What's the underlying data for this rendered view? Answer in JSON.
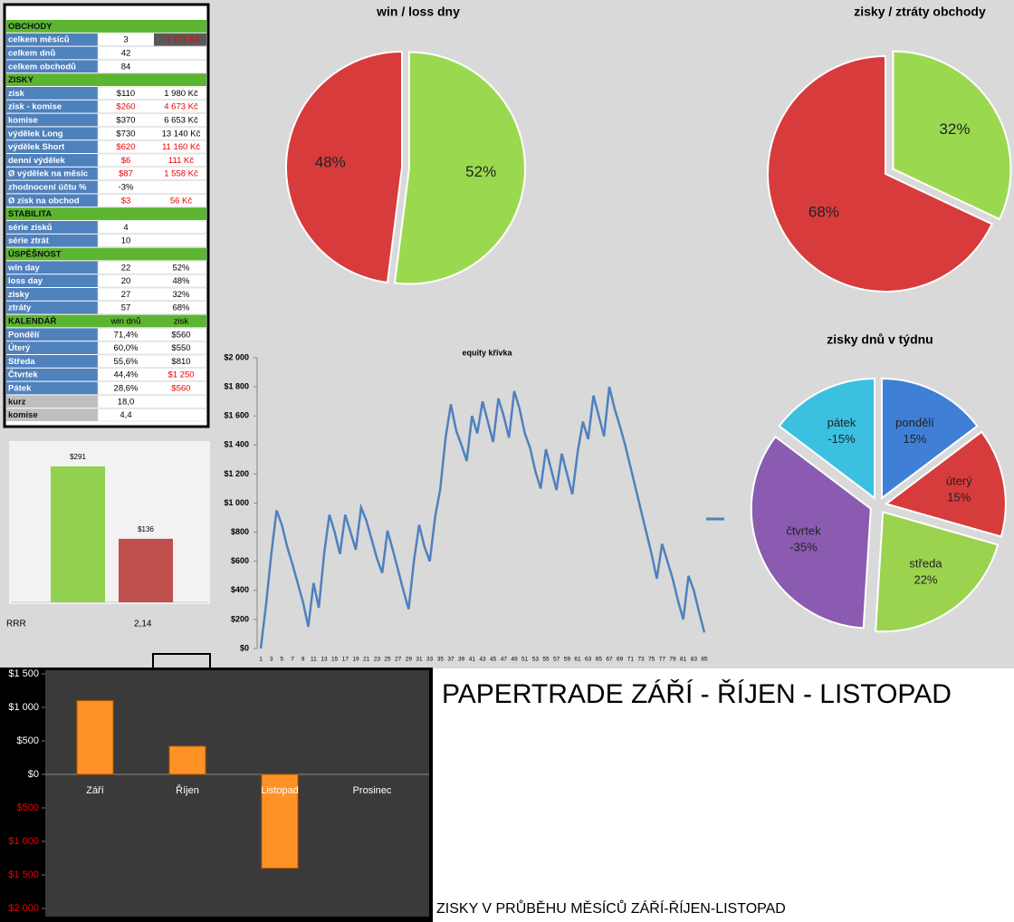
{
  "table": {
    "rows": [
      [
        "OBCHODY"
      ],
      [
        "celkem měsíců",
        "3",
        "-3 972 Kč"
      ],
      [
        "celkem dnů",
        "42"
      ],
      [
        "celkem obchodů",
        "84"
      ],
      [
        "ZISKY"
      ],
      [
        "zisk",
        "$110",
        "1 980 Kč"
      ],
      [
        "zisk - komise",
        "$260",
        "4 673 Kč"
      ],
      [
        "komise",
        "$370",
        "6 653 Kč"
      ],
      [
        "výdělek Long",
        "$730",
        "13 140 Kč"
      ],
      [
        "výdělek Short",
        "$620",
        "11 160 Kč"
      ],
      [
        "denní výdělek",
        "$6",
        "111 Kč"
      ],
      [
        "Ø výdělek na měsíc",
        "$87",
        "1 558 Kč"
      ],
      [
        "zhodnocení účtu %",
        "-3%"
      ],
      [
        "Ø zisk na obchod",
        "$3",
        "56 Kč"
      ],
      [
        "STABILITA"
      ],
      [
        "série zisků",
        "4"
      ],
      [
        "série ztrát",
        "10"
      ],
      [
        "ÚSPĚŠNOST"
      ],
      [
        "win day",
        "22",
        "52%"
      ],
      [
        "loss day",
        "20",
        "48%"
      ],
      [
        "zisky",
        "27",
        "32%"
      ],
      [
        "ztráty",
        "57",
        "68%"
      ],
      [
        "KALENDÁŘ",
        "win dnů",
        "zisk"
      ],
      [
        "Pondělí",
        "71,4%",
        "$560"
      ],
      [
        "Úterý",
        "60,0%",
        "$550"
      ],
      [
        "Středa",
        "55,6%",
        "$810"
      ],
      [
        "Čtvrtek",
        "44,4%",
        "$1 250"
      ],
      [
        "Pátek",
        "28,6%",
        "$560"
      ],
      [
        "kurz",
        "18,0"
      ],
      [
        "komise",
        "4,4"
      ]
    ]
  },
  "rrr": {
    "label": "RRR",
    "value": "2,14"
  },
  "title": "PAPERTRADE ZÁŘÍ - ŘÍJEN - LISTOPAD",
  "subtitle": "ZISKY V PRŮBĚHU MĚSÍCŮ ZÁŘÍ-ŘÍJEN-LISTOPAD",
  "chart_data": [
    {
      "type": "pie",
      "title": "win / loss dny",
      "values": [
        52,
        48
      ],
      "value_labels": [
        "52%",
        "48%"
      ],
      "colors": [
        "#9ad94f",
        "#d83b3b"
      ]
    },
    {
      "type": "pie",
      "title": "zisky / ztráty obchody",
      "values": [
        32,
        68
      ],
      "value_labels": [
        "32%",
        "68%"
      ],
      "colors": [
        "#9ad94f",
        "#d83b3b"
      ]
    },
    {
      "type": "pie",
      "title": "zisky dnů v týdnu",
      "categories": [
        "pondělí",
        "úterý",
        "středa",
        "čtvrtek",
        "pátek"
      ],
      "values": [
        15,
        15,
        22,
        -35,
        -15
      ],
      "value_labels": [
        "15%",
        "15%",
        "22%",
        "-35%",
        "-15%"
      ],
      "colors": [
        "#3f7fd6",
        "#d63c3c",
        "#9bd34e",
        "#8a5bb0",
        "#3cc0e0"
      ]
    },
    {
      "type": "bar",
      "values": [
        291,
        136
      ],
      "value_labels": [
        "$291",
        "$136"
      ],
      "colors": [
        "#92d050",
        "#c0504d"
      ]
    },
    {
      "type": "line",
      "title": "equity křivka",
      "color": "#4f81bd",
      "x": [
        1,
        2,
        3,
        4,
        5,
        6,
        7,
        8,
        9,
        10,
        11,
        12,
        13,
        14,
        15,
        16,
        17,
        18,
        19,
        20,
        21,
        22,
        23,
        24,
        25,
        26,
        27,
        28,
        29,
        30,
        31,
        32,
        33,
        34,
        35,
        36,
        37,
        38,
        39,
        40,
        41,
        42,
        43,
        44,
        45,
        46,
        47,
        48,
        49,
        50,
        51,
        52,
        53,
        54,
        55,
        56,
        57,
        58,
        59,
        60,
        61,
        62,
        63,
        64,
        65,
        66,
        67,
        68,
        69,
        70,
        71,
        72,
        73,
        74,
        75,
        76,
        77,
        78,
        79,
        80,
        81,
        82,
        83,
        84,
        85
      ],
      "values": [
        0,
        300,
        650,
        950,
        850,
        700,
        580,
        450,
        320,
        150,
        450,
        280,
        650,
        920,
        800,
        650,
        920,
        800,
        680,
        970,
        880,
        750,
        620,
        520,
        810,
        680,
        540,
        400,
        270,
        600,
        850,
        700,
        600,
        900,
        1100,
        1450,
        1680,
        1500,
        1400,
        1290,
        1600,
        1480,
        1700,
        1560,
        1420,
        1720,
        1600,
        1450,
        1770,
        1650,
        1480,
        1380,
        1220,
        1100,
        1370,
        1230,
        1090,
        1340,
        1200,
        1060,
        1350,
        1560,
        1440,
        1740,
        1600,
        1460,
        1800,
        1650,
        1530,
        1400,
        1250,
        1100,
        950,
        800,
        650,
        480,
        720,
        600,
        480,
        330,
        200,
        500,
        400,
        250,
        110
      ],
      "xlim": [
        1,
        85
      ],
      "xticks": [
        1,
        3,
        5,
        7,
        9,
        11,
        13,
        15,
        17,
        19,
        21,
        23,
        25,
        27,
        29,
        31,
        33,
        35,
        37,
        39,
        41,
        43,
        45,
        47,
        49,
        51,
        53,
        55,
        57,
        59,
        61,
        63,
        65,
        67,
        69,
        71,
        73,
        75,
        77,
        79,
        81,
        83,
        85
      ],
      "ylim": [
        0,
        2000
      ],
      "yticks": [
        {
          "value": 0,
          "label": "$0"
        },
        {
          "value": 200,
          "label": "$200"
        },
        {
          "value": 400,
          "label": "$400"
        },
        {
          "value": 600,
          "label": "$600"
        },
        {
          "value": 800,
          "label": "$800"
        },
        {
          "value": 1000,
          "label": "$1 000"
        },
        {
          "value": 1200,
          "label": "$1 200"
        },
        {
          "value": 1400,
          "label": "$1 400"
        },
        {
          "value": 1600,
          "label": "$1 600"
        },
        {
          "value": 1800,
          "label": "$1 800"
        },
        {
          "value": 2000,
          "label": "$2 000"
        }
      ]
    },
    {
      "type": "bar",
      "categories": [
        "Září",
        "Říjen",
        "Listopad",
        "Prosinec"
      ],
      "values": [
        1100,
        420,
        -1400,
        null
      ],
      "color": "#ff9226",
      "ylim": [
        -2000,
        1500
      ],
      "yticks": [
        {
          "value": 1500,
          "label": "$1 500"
        },
        {
          "value": 1000,
          "label": "$1 000"
        },
        {
          "value": 500,
          "label": "$500"
        },
        {
          "value": 0,
          "label": "$0"
        },
        {
          "value": -500,
          "label": "$500"
        },
        {
          "value": -1000,
          "label": "$1 000"
        },
        {
          "value": -1500,
          "label": "$1 500"
        },
        {
          "value": -2000,
          "label": "$2 000"
        }
      ]
    }
  ]
}
